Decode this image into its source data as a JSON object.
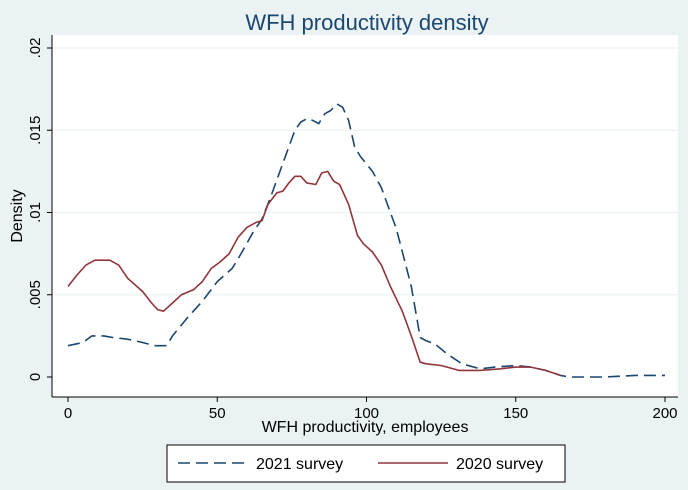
{
  "chart_data": {
    "type": "line",
    "title": "WFH productivity density",
    "xlabel": "WFH productivity, employees",
    "ylabel": "Density",
    "xlim": [
      0,
      200
    ],
    "ylim": [
      0,
      0.02
    ],
    "x_ticks": [
      0,
      50,
      100,
      150,
      200
    ],
    "x_tick_labels": [
      "0",
      "50",
      "100",
      "150",
      "200"
    ],
    "y_ticks": [
      0,
      0.005,
      0.01,
      0.015,
      0.02
    ],
    "y_tick_labels": [
      "0",
      ".005",
      ".01",
      ".015",
      ".02"
    ],
    "grid": "horizontal",
    "legend_position": "bottom",
    "series": [
      {
        "name": "2021 survey",
        "color": "#1a476f",
        "dash": "dashed",
        "points": [
          [
            0,
            0.0019
          ],
          [
            5,
            0.0021
          ],
          [
            8,
            0.0025
          ],
          [
            12,
            0.0025
          ],
          [
            15,
            0.0024
          ],
          [
            20,
            0.0023
          ],
          [
            25,
            0.0021
          ],
          [
            29,
            0.0019
          ],
          [
            33,
            0.0019
          ],
          [
            35,
            0.0025
          ],
          [
            40,
            0.0036
          ],
          [
            45,
            0.0046
          ],
          [
            50,
            0.0058
          ],
          [
            55,
            0.0066
          ],
          [
            58,
            0.0075
          ],
          [
            62,
            0.0088
          ],
          [
            65,
            0.0096
          ],
          [
            68,
            0.011
          ],
          [
            72,
            0.013
          ],
          [
            76,
            0.015
          ],
          [
            78,
            0.0155
          ],
          [
            80,
            0.0157
          ],
          [
            82,
            0.0156
          ],
          [
            84,
            0.0154
          ],
          [
            86,
            0.016
          ],
          [
            88,
            0.0162
          ],
          [
            90,
            0.0166
          ],
          [
            92,
            0.0164
          ],
          [
            94,
            0.0156
          ],
          [
            96,
            0.014
          ],
          [
            98,
            0.0134
          ],
          [
            102,
            0.0125
          ],
          [
            105,
            0.0115
          ],
          [
            110,
            0.009
          ],
          [
            115,
            0.0055
          ],
          [
            118,
            0.0024
          ],
          [
            120,
            0.0022
          ],
          [
            123,
            0.002
          ],
          [
            127,
            0.0014
          ],
          [
            132,
            0.0008
          ],
          [
            138,
            0.0005
          ],
          [
            143,
            0.0006
          ],
          [
            150,
            0.0007
          ],
          [
            155,
            0.0006
          ],
          [
            160,
            0.0004
          ],
          [
            165,
            0.0001
          ],
          [
            168,
            0.0
          ],
          [
            180,
            0.0
          ],
          [
            190,
            0.0001
          ],
          [
            200,
            0.0001
          ]
        ]
      },
      {
        "name": "2020 survey",
        "color": "#90353b",
        "dash": "solid",
        "points": [
          [
            0,
            0.0055
          ],
          [
            3,
            0.0062
          ],
          [
            6,
            0.0068
          ],
          [
            9,
            0.0071
          ],
          [
            12,
            0.0071
          ],
          [
            14,
            0.0071
          ],
          [
            17,
            0.0068
          ],
          [
            20,
            0.006
          ],
          [
            25,
            0.0052
          ],
          [
            28,
            0.0045
          ],
          [
            30,
            0.0041
          ],
          [
            32,
            0.004
          ],
          [
            35,
            0.0045
          ],
          [
            38,
            0.005
          ],
          [
            42,
            0.0053
          ],
          [
            45,
            0.0058
          ],
          [
            48,
            0.0066
          ],
          [
            51,
            0.007
          ],
          [
            54,
            0.0075
          ],
          [
            57,
            0.0085
          ],
          [
            60,
            0.0091
          ],
          [
            63,
            0.0094
          ],
          [
            65,
            0.0095
          ],
          [
            67,
            0.0105
          ],
          [
            70,
            0.0112
          ],
          [
            72,
            0.0113
          ],
          [
            74,
            0.0118
          ],
          [
            76,
            0.0122
          ],
          [
            78,
            0.0122
          ],
          [
            80,
            0.0118
          ],
          [
            83,
            0.0117
          ],
          [
            85,
            0.0124
          ],
          [
            87,
            0.0125
          ],
          [
            89,
            0.0119
          ],
          [
            91,
            0.0117
          ],
          [
            94,
            0.0105
          ],
          [
            97,
            0.0086
          ],
          [
            99,
            0.0081
          ],
          [
            102,
            0.0076
          ],
          [
            105,
            0.0068
          ],
          [
            108,
            0.0055
          ],
          [
            112,
            0.004
          ],
          [
            115,
            0.0025
          ],
          [
            118,
            0.0009
          ],
          [
            120,
            0.0008
          ],
          [
            125,
            0.0007
          ],
          [
            131,
            0.0004
          ],
          [
            138,
            0.0004
          ],
          [
            145,
            0.0005
          ],
          [
            150,
            0.0006
          ],
          [
            155,
            0.0006
          ],
          [
            160,
            0.0004
          ],
          [
            165,
            0.0001
          ]
        ]
      }
    ]
  }
}
